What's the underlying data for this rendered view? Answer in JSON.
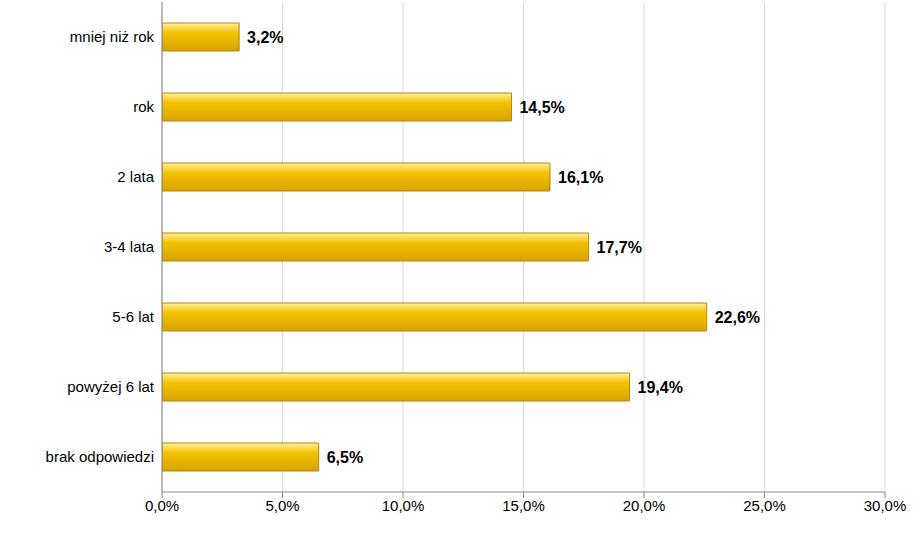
{
  "chart_data": {
    "type": "bar",
    "orientation": "horizontal",
    "categories": [
      "mniej niż rok",
      "rok",
      "2 lata",
      "3-4 lata",
      "5-6 lat",
      "powyżej 6 lat",
      "brak odpowiedzi"
    ],
    "values": [
      3.2,
      14.5,
      16.1,
      17.7,
      22.6,
      19.4,
      6.5
    ],
    "value_labels": [
      "3,2%",
      "14,5%",
      "16,1%",
      "17,7%",
      "22,6%",
      "19,4%",
      "6,5%"
    ],
    "data_labels": true,
    "color": "#f2c200",
    "xlim": [
      0,
      30
    ],
    "xticks": [
      {
        "value": 0,
        "label": "0,0%"
      },
      {
        "value": 5,
        "label": "5,0%"
      },
      {
        "value": 10,
        "label": "10,0%"
      },
      {
        "value": 15,
        "label": "15,0%"
      },
      {
        "value": 20,
        "label": "20,0%"
      },
      {
        "value": 25,
        "label": "25,0%"
      },
      {
        "value": 30,
        "label": "30,0%"
      }
    ],
    "grid": true
  }
}
